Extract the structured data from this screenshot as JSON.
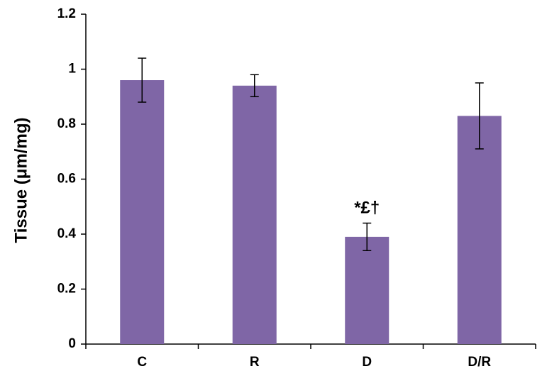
{
  "chart_data": {
    "type": "bar",
    "title": "",
    "xlabel": "",
    "ylabel": "Tissue (μm/mg)",
    "categories": [
      "C",
      "R",
      "D",
      "D/R"
    ],
    "values": [
      0.96,
      0.94,
      0.39,
      0.83
    ],
    "errors": [
      0.08,
      0.04,
      0.05,
      0.12
    ],
    "ylim": [
      0,
      1.2
    ],
    "yticks": [
      "0",
      "0.2",
      "0.4",
      "0.6",
      "0.8",
      "1",
      "1.2"
    ],
    "grid": false,
    "legend": "none",
    "bar_color": "#7f66a6",
    "annotations": [
      {
        "category": "D",
        "text": "*£†"
      }
    ]
  }
}
